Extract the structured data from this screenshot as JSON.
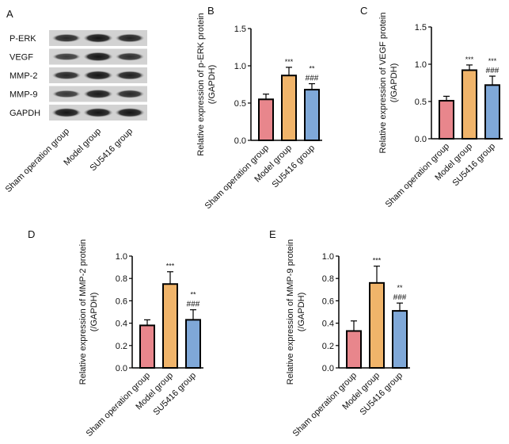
{
  "panel_a": {
    "letter": "A",
    "bands": [
      "P-ERK",
      "VEGF",
      "MMP-2",
      "MMP-9",
      "GAPDH"
    ],
    "lanes": [
      "Sham operation group",
      "Model group",
      "SU5416 group"
    ]
  },
  "colors": {
    "sham": "#e8868c",
    "model": "#f0b46a",
    "su5416": "#7fa8d8"
  },
  "chart_data": [
    {
      "letter": "B",
      "type": "bar",
      "ylabel": [
        "Relative expression of p-ERK protein",
        "(/GAPDH)"
      ],
      "categories": [
        "Sham operation group",
        "Model group",
        "SU5416 group"
      ],
      "values": [
        0.55,
        0.87,
        0.68
      ],
      "errors": [
        0.07,
        0.11,
        0.08
      ],
      "annotations": [
        [],
        [
          "***"
        ],
        [
          "**",
          "###"
        ]
      ],
      "ylim": [
        0,
        1.5
      ],
      "yticks": [
        "0.0",
        "0.5",
        "1.0",
        "1.5"
      ]
    },
    {
      "letter": "C",
      "type": "bar",
      "ylabel": [
        "Relative expression of VEGF protein",
        "(/GAPDH)"
      ],
      "categories": [
        "Sham operation group",
        "Model group",
        "SU5416 group"
      ],
      "values": [
        0.51,
        0.92,
        0.72
      ],
      "errors": [
        0.06,
        0.07,
        0.12
      ],
      "annotations": [
        [],
        [
          "***"
        ],
        [
          "***",
          "###"
        ]
      ],
      "ylim": [
        0,
        1.5
      ],
      "yticks": [
        "0.0",
        "0.5",
        "1.0",
        "1.5"
      ]
    },
    {
      "letter": "D",
      "type": "bar",
      "ylabel": [
        "Relative expression of MMP-2 protein",
        "(/GAPDH)"
      ],
      "categories": [
        "Sham operation group",
        "Model group",
        "SU5416 group"
      ],
      "values": [
        0.38,
        0.75,
        0.43
      ],
      "errors": [
        0.05,
        0.11,
        0.09
      ],
      "annotations": [
        [],
        [
          "***"
        ],
        [
          "**",
          "###"
        ]
      ],
      "ylim": [
        0,
        1.0
      ],
      "yticks": [
        "0.0",
        "0.2",
        "0.4",
        "0.6",
        "0.8",
        "1.0"
      ]
    },
    {
      "letter": "E",
      "type": "bar",
      "ylabel": [
        "Relative expression of MMP-9 protein",
        "(/GAPDH)"
      ],
      "categories": [
        "Sham operation group",
        "Model group",
        "SU5416 group"
      ],
      "values": [
        0.33,
        0.76,
        0.51
      ],
      "errors": [
        0.09,
        0.15,
        0.07
      ],
      "annotations": [
        [],
        [
          "***"
        ],
        [
          "**",
          "###"
        ]
      ],
      "ylim": [
        0,
        1.0
      ],
      "yticks": [
        "0.0",
        "0.2",
        "0.4",
        "0.6",
        "0.8",
        "1.0"
      ]
    }
  ]
}
